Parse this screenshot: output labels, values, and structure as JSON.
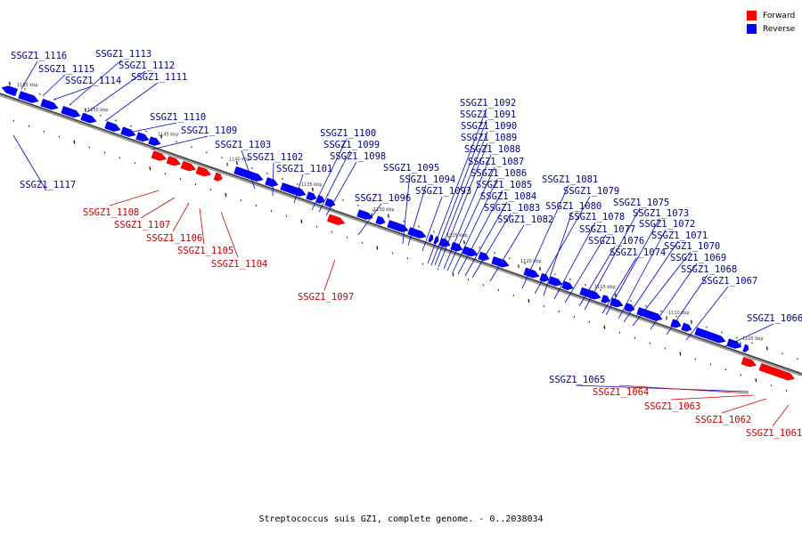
{
  "caption": "Streptococcus suis GZ1, complete genome. - 0..2038034",
  "legend": {
    "forward": {
      "label": "Forward",
      "color": "#ff0000"
    },
    "reverse": {
      "label": "Reverse",
      "color": "#0000ff"
    }
  },
  "colors": {
    "forward_fill": "#ff0000",
    "forward_line": "#cc0000",
    "reverse_fill": "#0000ff",
    "reverse_line": "#0000cc"
  },
  "scale_labels": [
    "1155 kbp",
    "1150 kbp",
    "1145 kbp",
    "1140 kbp",
    "1135 kbp",
    "1130 kbp",
    "1125 kbp",
    "1120 kbp",
    "1115 kbp",
    "1110 kbp",
    "1105 kbp"
  ],
  "genes": [
    {
      "label": "SSGZ1_1116",
      "strand": "reverse"
    },
    {
      "label": "SSGZ1_1115",
      "strand": "reverse"
    },
    {
      "label": "SSGZ1_1114",
      "strand": "reverse"
    },
    {
      "label": "SSGZ1_1113",
      "strand": "reverse"
    },
    {
      "label": "SSGZ1_1112",
      "strand": "reverse"
    },
    {
      "label": "SSGZ1_1111",
      "strand": "reverse"
    },
    {
      "label": "SSGZ1_1110",
      "strand": "reverse"
    },
    {
      "label": "SSGZ1_1109",
      "strand": "reverse"
    },
    {
      "label": "SSGZ1_1103",
      "strand": "reverse"
    },
    {
      "label": "SSGZ1_1102",
      "strand": "reverse"
    },
    {
      "label": "SSGZ1_1101",
      "strand": "reverse"
    },
    {
      "label": "SSGZ1_1100",
      "strand": "reverse"
    },
    {
      "label": "SSGZ1_1099",
      "strand": "reverse"
    },
    {
      "label": "SSGZ1_1098",
      "strand": "reverse"
    },
    {
      "label": "SSGZ1_1117",
      "strand": "reverse"
    },
    {
      "label": "SSGZ1_1108",
      "strand": "forward"
    },
    {
      "label": "SSGZ1_1107",
      "strand": "forward"
    },
    {
      "label": "SSGZ1_1106",
      "strand": "forward"
    },
    {
      "label": "SSGZ1_1105",
      "strand": "forward"
    },
    {
      "label": "SSGZ1_1104",
      "strand": "forward"
    },
    {
      "label": "SSGZ1_1097",
      "strand": "forward"
    },
    {
      "label": "SSGZ1_1096",
      "strand": "reverse"
    },
    {
      "label": "SSGZ1_1095",
      "strand": "reverse"
    },
    {
      "label": "SSGZ1_1094",
      "strand": "reverse"
    },
    {
      "label": "SSGZ1_1093",
      "strand": "reverse"
    },
    {
      "label": "SSGZ1_1092",
      "strand": "reverse"
    },
    {
      "label": "SSGZ1_1091",
      "strand": "reverse"
    },
    {
      "label": "SSGZ1_1090",
      "strand": "reverse"
    },
    {
      "label": "SSGZ1_1089",
      "strand": "reverse"
    },
    {
      "label": "SSGZ1_1088",
      "strand": "reverse"
    },
    {
      "label": "SSGZ1_1087",
      "strand": "reverse"
    },
    {
      "label": "SSGZ1_1086",
      "strand": "reverse"
    },
    {
      "label": "SSGZ1_1085",
      "strand": "reverse"
    },
    {
      "label": "SSGZ1_1084",
      "strand": "reverse"
    },
    {
      "label": "SSGZ1_1083",
      "strand": "reverse"
    },
    {
      "label": "SSGZ1_1082",
      "strand": "reverse"
    },
    {
      "label": "SSGZ1_1081",
      "strand": "reverse"
    },
    {
      "label": "SSGZ1_1079",
      "strand": "reverse"
    },
    {
      "label": "SSGZ1_1080",
      "strand": "reverse"
    },
    {
      "label": "SSGZ1_1078",
      "strand": "reverse"
    },
    {
      "label": "SSGZ1_1077",
      "strand": "reverse"
    },
    {
      "label": "SSGZ1_1076",
      "strand": "reverse"
    },
    {
      "label": "SSGZ1_1075",
      "strand": "reverse"
    },
    {
      "label": "SSGZ1_1074",
      "strand": "reverse"
    },
    {
      "label": "SSGZ1_1073",
      "strand": "reverse"
    },
    {
      "label": "SSGZ1_1072",
      "strand": "reverse"
    },
    {
      "label": "SSGZ1_1071",
      "strand": "reverse"
    },
    {
      "label": "SSGZ1_1070",
      "strand": "reverse"
    },
    {
      "label": "SSGZ1_1069",
      "strand": "reverse"
    },
    {
      "label": "SSGZ1_1068",
      "strand": "reverse"
    },
    {
      "label": "SSGZ1_1067",
      "strand": "reverse"
    },
    {
      "label": "SSGZ1_1066",
      "strand": "reverse"
    },
    {
      "label": "SSGZ1_1065",
      "strand": "reverse"
    },
    {
      "label": "SSGZ1_1064",
      "strand": "forward"
    },
    {
      "label": "SSGZ1_1063",
      "strand": "forward"
    },
    {
      "label": "SSGZ1_1062",
      "strand": "forward"
    },
    {
      "label": "SSGZ1_1061",
      "strand": "forward"
    }
  ]
}
